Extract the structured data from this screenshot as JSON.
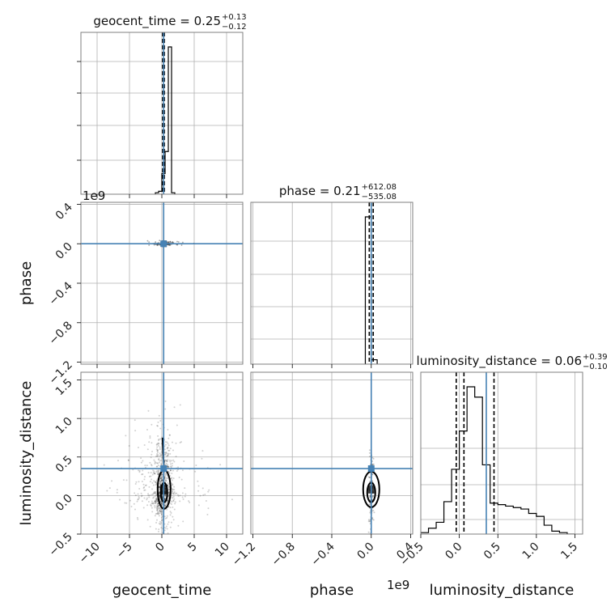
{
  "chart_data": {
    "type": "corner",
    "parameters": [
      "geocent_time",
      "phase",
      "luminosity_distance"
    ],
    "truth": {
      "geocent_time": 0.28,
      "phase": 0.0,
      "luminosity_distance": 0.35
    },
    "truth_color": "#4682b4",
    "offset_labels": {
      "phase_y": "1e9",
      "phase_x": "1e9"
    },
    "ranges": {
      "geocent_time": [
        -12.5,
        12.5
      ],
      "phase": [
        -1.22,
        0.42
      ],
      "luminosity_distance": [
        -0.5,
        1.6
      ]
    },
    "ticks": {
      "geocent_time": {
        "values": [
          -10,
          -5,
          0,
          5,
          10
        ],
        "labels": [
          "−10",
          "−5",
          "0",
          "5",
          "10"
        ]
      },
      "phase": {
        "values": [
          -1.2,
          -0.8,
          -0.4,
          0.0,
          0.4
        ],
        "labels": [
          "−1.2",
          "−0.8",
          "−0.4",
          "0.0",
          "0.4"
        ]
      },
      "luminosity_distance_x": {
        "values": [
          -0.5,
          0.0,
          0.5,
          1.0,
          1.5
        ],
        "labels": [
          "−0.5",
          "0.0",
          "0.5",
          "1.0",
          "1.5"
        ]
      },
      "luminosity_distance_y": {
        "values": [
          -0.5,
          0.0,
          0.5,
          1.0,
          1.5
        ],
        "labels": [
          "−0.5",
          "0.0",
          "0.5",
          "1.0",
          "1.5"
        ]
      }
    },
    "titles": {
      "geocent_time": {
        "text": "geocent_time = 0.25",
        "plus": "+0.13",
        "minus": "−0.12"
      },
      "phase": {
        "text": "phase = 0.21",
        "plus": "+612.08",
        "minus": "−535.08"
      },
      "luminosity_distance": {
        "text": "luminosity_distance = 0.06",
        "plus": "+0.39",
        "minus": "−0.10"
      }
    },
    "axis_labels": {
      "x": [
        "geocent_time",
        "phase",
        "luminosity_distance"
      ],
      "y": [
        "phase",
        "luminosity_distance"
      ]
    },
    "hist_geocent_time": {
      "edges": [
        -1.0,
        -0.5,
        0.0,
        0.5,
        1.0,
        1.5,
        2.0
      ],
      "counts": [
        0.01,
        0.02,
        0.14,
        0.29,
        1.0,
        0.01
      ],
      "quantile_lines": [
        0.13,
        0.25,
        0.38
      ]
    },
    "hist_phase": {
      "edges": [
        -0.06,
        0.0,
        0.06
      ],
      "counts": [
        1.0,
        0.03
      ],
      "quantile_lines": [
        -0.02,
        0.0,
        0.02
      ]
    },
    "hist_luminosity_distance": {
      "edges": [
        -0.5,
        -0.4,
        -0.3,
        -0.2,
        -0.1,
        0.0,
        0.1,
        0.2,
        0.3,
        0.4,
        0.5,
        0.6,
        0.7,
        0.8,
        0.9,
        1.0,
        1.1,
        1.2,
        1.3,
        1.4,
        1.5
      ],
      "counts": [
        0.01,
        0.04,
        0.08,
        0.22,
        0.44,
        0.7,
        1.0,
        0.93,
        0.47,
        0.21,
        0.2,
        0.19,
        0.18,
        0.17,
        0.14,
        0.12,
        0.06,
        0.02,
        0.01,
        0.0
      ],
      "quantile_lines": [
        -0.04,
        0.06,
        0.45
      ]
    }
  }
}
